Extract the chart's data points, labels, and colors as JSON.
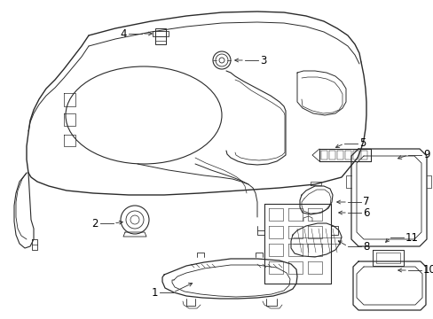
{
  "bg_color": "#ffffff",
  "line_color": "#2a2a2a",
  "label_color": "#000000",
  "fig_width": 4.89,
  "fig_height": 3.6,
  "dpi": 100,
  "lw": 0.75,
  "fs": 8.5
}
